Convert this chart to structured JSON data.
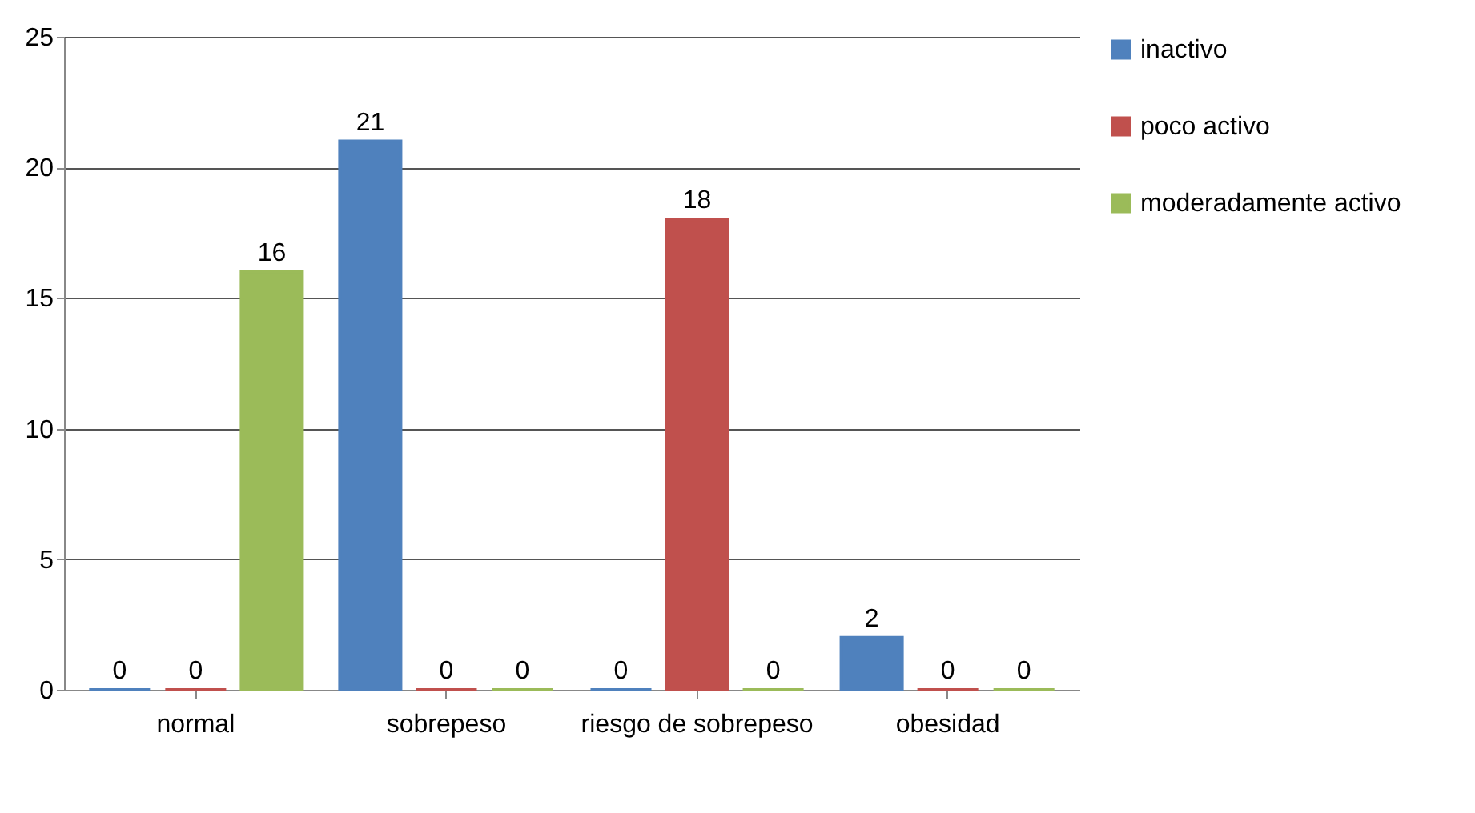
{
  "chart_data": {
    "type": "bar",
    "categories": [
      "normal",
      "sobrepeso",
      "riesgo de sobrepeso",
      "obesidad"
    ],
    "series": [
      {
        "name": "inactivo",
        "color": "#4f81bd",
        "values": [
          0,
          21,
          0,
          2
        ]
      },
      {
        "name": "poco activo",
        "color": "#c0504d",
        "values": [
          0,
          0,
          18,
          0
        ]
      },
      {
        "name": "moderadamente activo",
        "color": "#9bbb59",
        "values": [
          16,
          0,
          0,
          0
        ]
      }
    ],
    "ylim": [
      0,
      25
    ],
    "yticks": [
      0,
      5,
      10,
      15,
      20,
      25
    ],
    "grid": "y",
    "legend": "right",
    "data_labels": true
  }
}
